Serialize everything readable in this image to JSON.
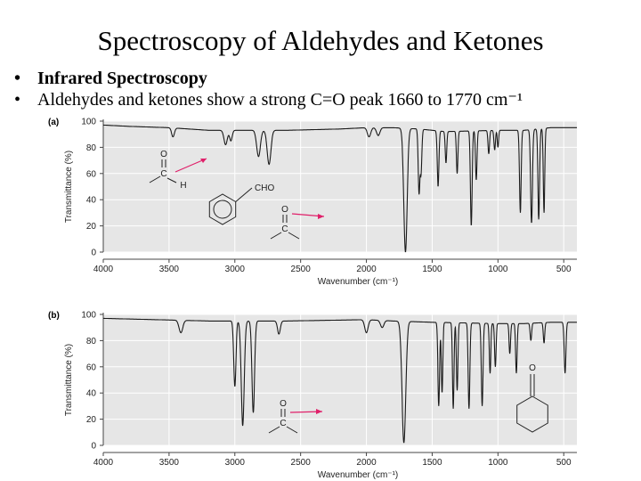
{
  "slide": {
    "title": "Spectroscopy of Aldehydes and Ketones",
    "bullets": [
      "Infrared Spectroscopy",
      "Aldehydes and ketones show a strong C=O peak 1660 to 1770 cm⁻¹"
    ]
  },
  "colors": {
    "plot_bg": "#e6e6e6",
    "trace": "#1a1a1a",
    "arrow": "#e0206a"
  },
  "chart_data": [
    {
      "type": "line",
      "panel_label": "(a)",
      "xlabel": "Wavenumber (cm⁻¹)",
      "ylabel": "Transmittance (%)",
      "xlim": [
        4000,
        400
      ],
      "ylim": [
        0,
        100
      ],
      "xticks": [
        "4000",
        "3500",
        "3000",
        "2500",
        "2000",
        "1500",
        "1000",
        "500"
      ],
      "yticks": [
        "0",
        "20",
        "40",
        "60",
        "80",
        "100"
      ],
      "grid": true,
      "baseline": [
        [
          4000,
          97
        ],
        [
          3800,
          96
        ],
        [
          3500,
          95
        ],
        [
          3200,
          93
        ],
        [
          2600,
          93
        ],
        [
          2200,
          94
        ],
        [
          2000,
          95
        ],
        [
          1800,
          95
        ],
        [
          1600,
          94
        ],
        [
          1400,
          92
        ],
        [
          1000,
          93
        ],
        [
          800,
          93
        ],
        [
          600,
          95
        ],
        [
          400,
          95
        ]
      ],
      "peaks": [
        [
          3470,
          88,
          15
        ],
        [
          3070,
          82,
          18
        ],
        [
          3030,
          85,
          14
        ],
        [
          2820,
          73,
          20
        ],
        [
          2740,
          67,
          20
        ],
        [
          1980,
          88,
          18
        ],
        [
          1910,
          89,
          18
        ],
        [
          1703,
          0,
          18
        ],
        [
          1600,
          45,
          9
        ],
        [
          1585,
          60,
          9
        ],
        [
          1455,
          50,
          9
        ],
        [
          1395,
          68,
          8
        ],
        [
          1310,
          60,
          8
        ],
        [
          1203,
          20,
          9
        ],
        [
          1165,
          55,
          8
        ],
        [
          1070,
          75,
          8
        ],
        [
          1025,
          78,
          8
        ],
        [
          1000,
          80,
          7
        ],
        [
          830,
          30,
          9
        ],
        [
          745,
          22,
          10
        ],
        [
          690,
          25,
          9
        ],
        [
          650,
          30,
          8
        ]
      ],
      "molecules": {
        "aldehyde_group": [
          "O",
          "C",
          "H"
        ],
        "benzaldehyde_substituent": "CHO",
        "ketone_group": [
          "O",
          "C"
        ]
      }
    },
    {
      "type": "line",
      "panel_label": "(b)",
      "xlabel": "Wavenumber (cm⁻¹)",
      "ylabel": "Transmittance (%)",
      "xlim": [
        4000,
        400
      ],
      "ylim": [
        0,
        100
      ],
      "xticks": [
        "4000",
        "3500",
        "3000",
        "2500",
        "2000",
        "1500",
        "1000",
        "500"
      ],
      "yticks": [
        "0",
        "20",
        "40",
        "60",
        "80",
        "100"
      ],
      "grid": true,
      "baseline": [
        [
          4000,
          97
        ],
        [
          3600,
          96
        ],
        [
          3200,
          95
        ],
        [
          2600,
          95
        ],
        [
          2000,
          96
        ],
        [
          1800,
          95
        ],
        [
          1500,
          94
        ],
        [
          1000,
          93
        ],
        [
          800,
          93
        ],
        [
          600,
          94
        ],
        [
          400,
          94
        ]
      ],
      "peaks": [
        [
          3410,
          86,
          20
        ],
        [
          3000,
          45,
          12
        ],
        [
          2940,
          15,
          16
        ],
        [
          2860,
          25,
          14
        ],
        [
          2665,
          85,
          15
        ],
        [
          2000,
          86,
          18
        ],
        [
          1880,
          90,
          18
        ],
        [
          1715,
          2,
          20
        ],
        [
          1450,
          30,
          9
        ],
        [
          1425,
          40,
          8
        ],
        [
          1340,
          28,
          8
        ],
        [
          1310,
          42,
          8
        ],
        [
          1220,
          28,
          9
        ],
        [
          1120,
          30,
          9
        ],
        [
          1060,
          55,
          8
        ],
        [
          1020,
          60,
          8
        ],
        [
          910,
          70,
          8
        ],
        [
          860,
          55,
          8
        ],
        [
          750,
          80,
          8
        ],
        [
          650,
          78,
          8
        ],
        [
          490,
          55,
          9
        ]
      ],
      "molecules": {
        "ketone_group": [
          "O",
          "C"
        ],
        "cyclohexanone_oxygen": "O"
      }
    }
  ]
}
